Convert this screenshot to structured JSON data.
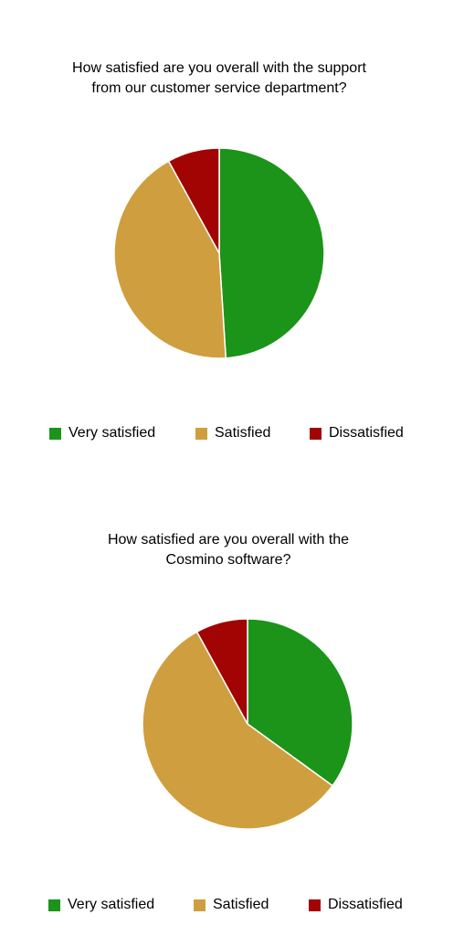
{
  "colors": {
    "very_satisfied": "#1b9419",
    "satisfied": "#cf9e3e",
    "dissatisfied": "#a10403"
  },
  "chart_data": [
    {
      "type": "pie",
      "title": "How satisfied are you overall with the support from our customer service department?",
      "title_lines": [
        "How satisfied are you overall with the support",
        "from our customer service department?"
      ],
      "categories": [
        "Very satisfied",
        "Satisfied",
        "Dissatisfied"
      ],
      "values": [
        49,
        43,
        8
      ],
      "legend": "bottom"
    },
    {
      "type": "pie",
      "title": "How satisfied are you overall with the Cosmino software?",
      "title_lines": [
        "How satisfied are you overall with the",
        "Cosmino software?"
      ],
      "categories": [
        "Very satisfied",
        "Satisfied",
        "Dissatisfied"
      ],
      "values": [
        35,
        57,
        8
      ],
      "legend": "bottom"
    }
  ]
}
